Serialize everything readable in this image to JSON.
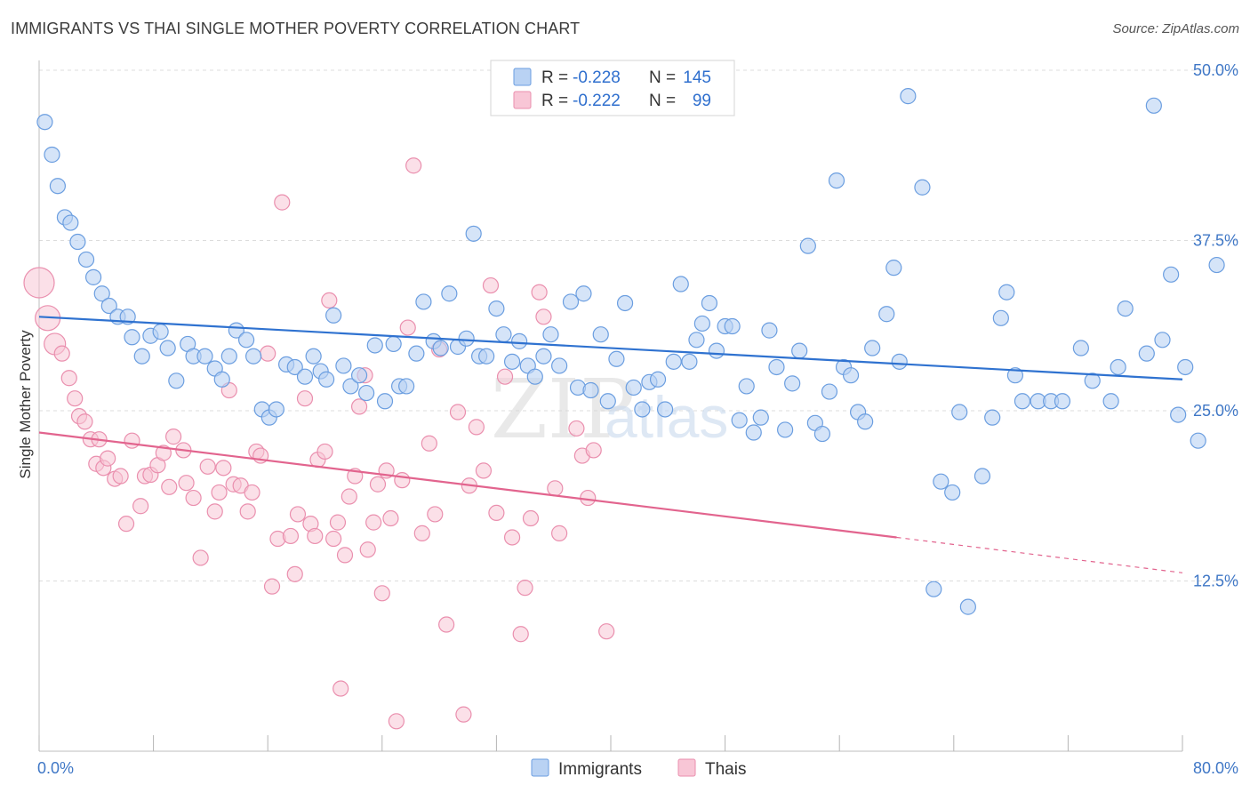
{
  "title": "IMMIGRANTS VS THAI SINGLE MOTHER POVERTY CORRELATION CHART",
  "source": "Source: ZipAtlas.com",
  "watermark": {
    "part1": "ZIP",
    "part2": "atlas"
  },
  "colors": {
    "immigrants_fill": "#b9d2f3",
    "immigrants_stroke": "#6b9ee0",
    "immigrants_line": "#2f72d0",
    "thais_fill": "#f8c6d6",
    "thais_stroke": "#ea8fae",
    "thais_line": "#e2648e",
    "tick_label": "#3f77c6",
    "grid": "#dcdcdc"
  },
  "legend": {
    "r_label": "R =",
    "n_label": "N =",
    "rows": [
      {
        "r": "-0.228",
        "n": "145"
      },
      {
        "r": "-0.222",
        "n": "99"
      }
    ]
  },
  "bottom_legend": [
    "Immigrants",
    "Thais"
  ],
  "chart_data": {
    "type": "scatter",
    "title": "IMMIGRANTS VS THAI SINGLE MOTHER POVERTY CORRELATION CHART",
    "xlabel": "",
    "ylabel": "Single Mother Poverty",
    "xlim": [
      0,
      80
    ],
    "ylim": [
      0,
      50
    ],
    "x_tick_labels": [
      "0.0%",
      "80.0%"
    ],
    "y_ticks": [
      12.5,
      25.0,
      37.5,
      50.0
    ],
    "y_tick_labels": [
      "12.5%",
      "25.0%",
      "37.5%",
      "50.0%"
    ],
    "grid": "horizontal dashed",
    "legend_position": "top-center",
    "series": [
      {
        "name": "Immigrants",
        "trend": {
          "x": [
            0,
            80
          ],
          "y": [
            31.9,
            27.3
          ]
        },
        "points": [
          [
            0.4,
            46.2
          ],
          [
            0.9,
            43.8
          ],
          [
            1.3,
            41.5
          ],
          [
            1.8,
            39.2
          ],
          [
            2.2,
            38.8
          ],
          [
            2.7,
            37.4
          ],
          [
            3.3,
            36.1
          ],
          [
            3.8,
            34.8
          ],
          [
            4.4,
            33.6
          ],
          [
            4.9,
            32.7
          ],
          [
            5.5,
            31.9
          ],
          [
            6.2,
            31.9
          ],
          [
            6.5,
            30.4
          ],
          [
            7.2,
            29.0
          ],
          [
            7.8,
            30.5
          ],
          [
            8.5,
            30.8
          ],
          [
            9.0,
            29.6
          ],
          [
            9.6,
            27.2
          ],
          [
            10.4,
            29.9
          ],
          [
            10.8,
            29.0
          ],
          [
            11.6,
            29.0
          ],
          [
            12.3,
            28.1
          ],
          [
            12.8,
            27.3
          ],
          [
            13.3,
            29.0
          ],
          [
            13.8,
            30.9
          ],
          [
            14.5,
            30.2
          ],
          [
            15.0,
            29.0
          ],
          [
            15.6,
            25.1
          ],
          [
            16.1,
            24.5
          ],
          [
            16.6,
            25.1
          ],
          [
            17.3,
            28.4
          ],
          [
            17.9,
            28.2
          ],
          [
            18.6,
            27.5
          ],
          [
            19.2,
            29.0
          ],
          [
            19.7,
            27.9
          ],
          [
            20.1,
            27.3
          ],
          [
            20.6,
            32.0
          ],
          [
            21.3,
            28.3
          ],
          [
            21.8,
            26.8
          ],
          [
            22.4,
            27.6
          ],
          [
            22.9,
            26.3
          ],
          [
            23.5,
            29.8
          ],
          [
            24.2,
            25.7
          ],
          [
            24.8,
            29.9
          ],
          [
            25.2,
            26.8
          ],
          [
            25.7,
            26.8
          ],
          [
            26.4,
            29.2
          ],
          [
            26.9,
            33.0
          ],
          [
            27.6,
            30.1
          ],
          [
            28.1,
            29.6
          ],
          [
            28.7,
            33.6
          ],
          [
            29.3,
            29.7
          ],
          [
            29.9,
            30.3
          ],
          [
            30.4,
            38.0
          ],
          [
            30.8,
            29.0
          ],
          [
            31.3,
            29.0
          ],
          [
            32.0,
            32.5
          ],
          [
            32.5,
            30.6
          ],
          [
            33.1,
            28.6
          ],
          [
            33.6,
            30.1
          ],
          [
            34.2,
            28.3
          ],
          [
            34.7,
            27.5
          ],
          [
            35.3,
            29.0
          ],
          [
            35.8,
            30.6
          ],
          [
            36.4,
            28.3
          ],
          [
            37.2,
            33.0
          ],
          [
            37.7,
            26.7
          ],
          [
            38.1,
            33.6
          ],
          [
            38.6,
            26.5
          ],
          [
            39.3,
            30.6
          ],
          [
            39.8,
            25.7
          ],
          [
            40.4,
            28.8
          ],
          [
            41.0,
            32.9
          ],
          [
            41.6,
            26.7
          ],
          [
            42.2,
            25.1
          ],
          [
            42.7,
            27.1
          ],
          [
            43.3,
            27.3
          ],
          [
            43.8,
            25.1
          ],
          [
            44.4,
            28.6
          ],
          [
            44.9,
            34.3
          ],
          [
            45.5,
            28.6
          ],
          [
            46.0,
            30.2
          ],
          [
            46.4,
            31.4
          ],
          [
            46.9,
            32.9
          ],
          [
            47.4,
            29.4
          ],
          [
            48.0,
            31.2
          ],
          [
            48.5,
            31.2
          ],
          [
            49.0,
            24.3
          ],
          [
            49.5,
            26.8
          ],
          [
            50.0,
            23.4
          ],
          [
            50.5,
            24.5
          ],
          [
            51.1,
            30.9
          ],
          [
            51.6,
            28.2
          ],
          [
            52.2,
            23.6
          ],
          [
            52.7,
            27.0
          ],
          [
            53.2,
            29.4
          ],
          [
            53.8,
            37.1
          ],
          [
            54.3,
            24.1
          ],
          [
            54.8,
            23.3
          ],
          [
            55.3,
            26.4
          ],
          [
            55.8,
            41.9
          ],
          [
            56.3,
            28.2
          ],
          [
            56.8,
            27.6
          ],
          [
            57.3,
            24.9
          ],
          [
            57.8,
            24.2
          ],
          [
            58.3,
            29.6
          ],
          [
            59.3,
            32.1
          ],
          [
            59.8,
            35.5
          ],
          [
            60.2,
            28.6
          ],
          [
            60.8,
            48.1
          ],
          [
            61.8,
            41.4
          ],
          [
            62.6,
            11.9
          ],
          [
            63.1,
            19.8
          ],
          [
            63.9,
            19.0
          ],
          [
            64.4,
            24.9
          ],
          [
            65.0,
            10.6
          ],
          [
            66.0,
            20.2
          ],
          [
            66.7,
            24.5
          ],
          [
            67.3,
            31.8
          ],
          [
            67.7,
            33.7
          ],
          [
            68.3,
            27.6
          ],
          [
            68.8,
            25.7
          ],
          [
            69.9,
            25.7
          ],
          [
            70.8,
            25.7
          ],
          [
            71.6,
            25.7
          ],
          [
            72.9,
            29.6
          ],
          [
            73.7,
            27.2
          ],
          [
            75.0,
            25.7
          ],
          [
            75.5,
            28.2
          ],
          [
            76.0,
            32.5
          ],
          [
            77.5,
            29.2
          ],
          [
            78.0,
            47.4
          ],
          [
            78.6,
            30.2
          ],
          [
            79.2,
            35.0
          ],
          [
            79.7,
            24.7
          ],
          [
            80.2,
            28.2
          ],
          [
            81.1,
            22.8
          ],
          [
            82.4,
            35.7
          ]
        ]
      },
      {
        "name": "Thais",
        "trend": {
          "x": [
            0,
            60
          ],
          "y": [
            23.4,
            15.7
          ]
        },
        "trend_dashed": {
          "x": [
            60,
            80
          ],
          "y": [
            15.7,
            13.1
          ]
        },
        "points": [
          [
            0.0,
            34.4
          ],
          [
            0.6,
            31.8
          ],
          [
            1.1,
            29.9
          ],
          [
            1.6,
            29.2
          ],
          [
            2.1,
            27.4
          ],
          [
            2.5,
            25.9
          ],
          [
            2.8,
            24.6
          ],
          [
            3.2,
            24.2
          ],
          [
            3.6,
            22.9
          ],
          [
            4.0,
            21.1
          ],
          [
            4.2,
            22.9
          ],
          [
            4.5,
            20.8
          ],
          [
            4.8,
            21.5
          ],
          [
            5.3,
            20.0
          ],
          [
            5.7,
            20.2
          ],
          [
            6.1,
            16.7
          ],
          [
            6.5,
            22.8
          ],
          [
            7.1,
            18.0
          ],
          [
            7.4,
            20.2
          ],
          [
            7.8,
            20.3
          ],
          [
            8.3,
            21.0
          ],
          [
            8.7,
            21.9
          ],
          [
            9.1,
            19.4
          ],
          [
            9.4,
            23.1
          ],
          [
            10.1,
            22.1
          ],
          [
            10.3,
            19.7
          ],
          [
            10.8,
            18.6
          ],
          [
            11.3,
            14.2
          ],
          [
            11.8,
            20.9
          ],
          [
            12.3,
            17.6
          ],
          [
            12.6,
            19.0
          ],
          [
            12.9,
            20.8
          ],
          [
            13.3,
            26.5
          ],
          [
            13.6,
            19.6
          ],
          [
            14.1,
            19.5
          ],
          [
            14.6,
            17.6
          ],
          [
            14.9,
            19.0
          ],
          [
            15.2,
            22.0
          ],
          [
            15.5,
            21.7
          ],
          [
            16.0,
            29.2
          ],
          [
            16.3,
            12.1
          ],
          [
            16.7,
            15.6
          ],
          [
            17.0,
            40.3
          ],
          [
            17.6,
            15.8
          ],
          [
            17.9,
            13.0
          ],
          [
            18.1,
            17.4
          ],
          [
            18.6,
            25.9
          ],
          [
            19.0,
            16.7
          ],
          [
            19.3,
            15.8
          ],
          [
            19.5,
            21.4
          ],
          [
            20.0,
            22.0
          ],
          [
            20.3,
            33.1
          ],
          [
            20.6,
            15.6
          ],
          [
            20.9,
            16.8
          ],
          [
            21.1,
            4.6
          ],
          [
            21.4,
            14.4
          ],
          [
            21.7,
            18.7
          ],
          [
            22.1,
            20.2
          ],
          [
            22.4,
            25.3
          ],
          [
            22.8,
            27.6
          ],
          [
            23.0,
            14.8
          ],
          [
            23.4,
            16.8
          ],
          [
            23.7,
            19.6
          ],
          [
            24.0,
            11.6
          ],
          [
            24.3,
            20.6
          ],
          [
            24.6,
            17.1
          ],
          [
            25.0,
            2.2
          ],
          [
            25.4,
            19.9
          ],
          [
            25.8,
            31.1
          ],
          [
            26.2,
            43.0
          ],
          [
            26.8,
            16.0
          ],
          [
            27.3,
            22.6
          ],
          [
            27.7,
            17.4
          ],
          [
            28.0,
            29.5
          ],
          [
            28.5,
            9.3
          ],
          [
            29.3,
            24.9
          ],
          [
            29.7,
            2.7
          ],
          [
            30.1,
            19.5
          ],
          [
            30.6,
            23.8
          ],
          [
            31.1,
            20.6
          ],
          [
            31.6,
            34.2
          ],
          [
            32.0,
            17.5
          ],
          [
            32.6,
            27.5
          ],
          [
            33.1,
            15.7
          ],
          [
            33.7,
            8.6
          ],
          [
            34.0,
            12.0
          ],
          [
            34.4,
            17.1
          ],
          [
            35.0,
            33.7
          ],
          [
            35.3,
            31.9
          ],
          [
            36.1,
            19.3
          ],
          [
            36.4,
            16.0
          ],
          [
            37.6,
            23.7
          ],
          [
            38.0,
            21.7
          ],
          [
            38.4,
            18.6
          ],
          [
            38.8,
            22.1
          ],
          [
            39.7,
            8.8
          ]
        ]
      }
    ]
  }
}
